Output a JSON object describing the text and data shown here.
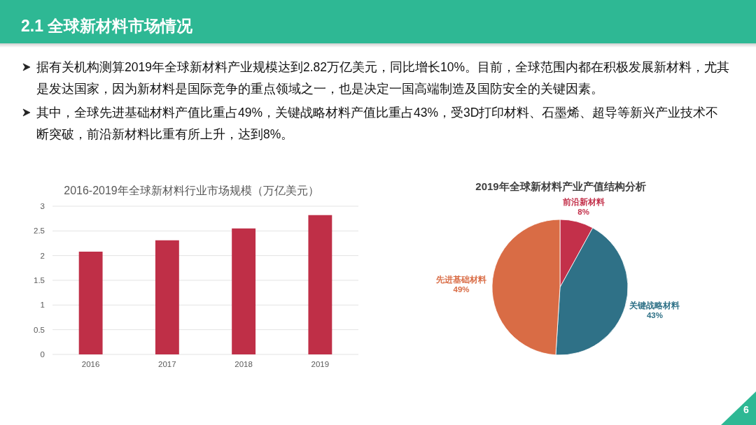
{
  "chart_data": [
    {
      "type": "other",
      "title": "2.1 全球新材料市场情况",
      "annotations": [
        "据有关机构测算2019年全球新材料产业规模达到2.82万亿美元，同比增长10%。目前，全球范围内都在积极发展新材料，尤其是发达国家，因为新材料是国际竞争的重点领域之一，也是决定一国高端制造及国防安全的关键因素。",
        "其中，全球先进基础材料产值比重占49%，关键战略材料产值比重占43%，受3D打印材料、石墨烯、超导等新兴产业技术不断突破，前沿新材料比重有所上升，达到8%。",
        "6"
      ]
    },
    {
      "type": "bar",
      "title": "2016-2019年全球新材料行业市场规模（万亿美元）",
      "categories": [
        "2016",
        "2017",
        "2018",
        "2019"
      ],
      "values": [
        2.08,
        2.31,
        2.55,
        2.82
      ],
      "color": "#bf2f47",
      "ylim": [
        0,
        3
      ],
      "yticks": [
        0,
        0.5,
        1,
        1.5,
        2,
        2.5,
        3
      ],
      "grid": "y"
    },
    {
      "type": "pie",
      "title": "2019年全球新材料产业产值结构分析",
      "categories": [
        "前沿新材料",
        "关键战略材料",
        "先进基础材料"
      ],
      "values": [
        8,
        43,
        49
      ],
      "colors": [
        "#c3304a",
        "#2f7187",
        "#d96c45"
      ],
      "value_labels": [
        "8%",
        "43%",
        "49%"
      ]
    }
  ]
}
